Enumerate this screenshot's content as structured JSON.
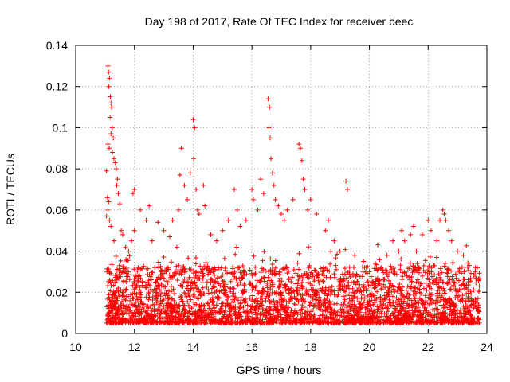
{
  "chart_data": {
    "type": "scatter",
    "title": "Day 198 of 2017, Rate Of TEC Index for receiver beec",
    "xlabel": "GPS time / hours",
    "ylabel": "ROTI / TECUs",
    "xlim": [
      10,
      24
    ],
    "ylim": [
      0,
      0.14
    ],
    "x_ticks": [
      10,
      12,
      14,
      16,
      18,
      20,
      22,
      24
    ],
    "x_tick_labels": [
      "10",
      "12",
      "14",
      "16",
      "18",
      "20",
      "22",
      "24"
    ],
    "y_ticks": [
      0,
      0.02,
      0.04,
      0.06,
      0.08,
      0.1,
      0.12,
      0.14
    ],
    "y_tick_labels": [
      "0",
      "0.02",
      "0.04",
      "0.06",
      "0.08",
      "0.1",
      "0.12",
      "0.14"
    ],
    "grid": true,
    "marker": "plus",
    "color": "#ff0000",
    "series": [
      {
        "name": "ROTI",
        "points": [
          [
            11.1,
            0.13
          ],
          [
            11.12,
            0.127
          ],
          [
            11.15,
            0.124
          ],
          [
            11.13,
            0.12
          ],
          [
            11.18,
            0.115
          ],
          [
            11.2,
            0.112
          ],
          [
            11.22,
            0.11
          ],
          [
            11.17,
            0.105
          ],
          [
            11.24,
            0.1
          ],
          [
            11.2,
            0.097
          ],
          [
            11.28,
            0.095
          ],
          [
            11.1,
            0.092
          ],
          [
            11.14,
            0.09
          ],
          [
            11.25,
            0.088
          ],
          [
            11.3,
            0.085
          ],
          [
            11.35,
            0.083
          ],
          [
            11.38,
            0.08
          ],
          [
            11.05,
            0.079
          ],
          [
            11.42,
            0.075
          ],
          [
            11.4,
            0.072
          ],
          [
            11.45,
            0.068
          ],
          [
            11.08,
            0.066
          ],
          [
            11.12,
            0.064
          ],
          [
            11.5,
            0.063
          ],
          [
            11.1,
            0.06
          ],
          [
            11.05,
            0.057
          ],
          [
            11.15,
            0.055
          ],
          [
            11.2,
            0.052
          ],
          [
            11.55,
            0.05
          ],
          [
            11.6,
            0.048
          ],
          [
            11.3,
            0.045
          ],
          [
            11.7,
            0.042
          ],
          [
            11.8,
            0.04
          ],
          [
            11.9,
            0.045
          ],
          [
            12.0,
            0.05
          ],
          [
            11.95,
            0.068
          ],
          [
            12.0,
            0.07
          ],
          [
            12.2,
            0.06
          ],
          [
            12.4,
            0.055
          ],
          [
            12.5,
            0.062
          ],
          [
            12.6,
            0.045
          ],
          [
            12.8,
            0.054
          ],
          [
            13.0,
            0.05
          ],
          [
            13.2,
            0.047
          ],
          [
            13.3,
            0.055
          ],
          [
            13.5,
            0.06
          ],
          [
            13.55,
            0.077
          ],
          [
            13.6,
            0.09
          ],
          [
            13.7,
            0.072
          ],
          [
            13.8,
            0.065
          ],
          [
            13.9,
            0.078
          ],
          [
            14.0,
            0.104
          ],
          [
            14.05,
            0.1
          ],
          [
            14.02,
            0.085
          ],
          [
            14.1,
            0.07
          ],
          [
            14.15,
            0.06
          ],
          [
            14.2,
            0.058
          ],
          [
            14.35,
            0.072
          ],
          [
            14.4,
            0.062
          ],
          [
            14.6,
            0.048
          ],
          [
            14.8,
            0.045
          ],
          [
            15.0,
            0.05
          ],
          [
            15.2,
            0.055
          ],
          [
            15.4,
            0.07
          ],
          [
            15.5,
            0.06
          ],
          [
            15.6,
            0.052
          ],
          [
            15.8,
            0.055
          ],
          [
            16.0,
            0.07
          ],
          [
            16.05,
            0.065
          ],
          [
            16.2,
            0.06
          ],
          [
            16.3,
            0.075
          ],
          [
            16.4,
            0.068
          ],
          [
            16.55,
            0.114
          ],
          [
            16.6,
            0.11
          ],
          [
            16.58,
            0.1
          ],
          [
            16.62,
            0.095
          ],
          [
            16.65,
            0.085
          ],
          [
            16.7,
            0.078
          ],
          [
            16.75,
            0.072
          ],
          [
            16.8,
            0.065
          ],
          [
            16.9,
            0.062
          ],
          [
            17.0,
            0.058
          ],
          [
            17.1,
            0.055
          ],
          [
            17.2,
            0.06
          ],
          [
            17.4,
            0.065
          ],
          [
            17.6,
            0.092
          ],
          [
            17.65,
            0.09
          ],
          [
            17.7,
            0.084
          ],
          [
            17.75,
            0.075
          ],
          [
            17.8,
            0.07
          ],
          [
            17.9,
            0.06
          ],
          [
            18.0,
            0.065
          ],
          [
            18.2,
            0.058
          ],
          [
            18.5,
            0.05
          ],
          [
            18.6,
            0.055
          ],
          [
            18.8,
            0.045
          ],
          [
            19.0,
            0.04
          ],
          [
            19.2,
            0.074
          ],
          [
            19.25,
            0.07
          ],
          [
            19.5,
            0.038
          ],
          [
            19.8,
            0.035
          ],
          [
            20.0,
            0.03
          ],
          [
            20.2,
            0.034
          ],
          [
            20.4,
            0.032
          ],
          [
            20.6,
            0.038
          ],
          [
            20.8,
            0.045
          ],
          [
            21.0,
            0.04
          ],
          [
            21.1,
            0.05
          ],
          [
            21.2,
            0.045
          ],
          [
            21.4,
            0.048
          ],
          [
            21.5,
            0.052
          ],
          [
            21.6,
            0.04
          ],
          [
            21.8,
            0.048
          ],
          [
            22.0,
            0.055
          ],
          [
            22.1,
            0.05
          ],
          [
            22.3,
            0.045
          ],
          [
            22.4,
            0.055
          ],
          [
            22.5,
            0.06
          ],
          [
            22.55,
            0.058
          ],
          [
            22.6,
            0.055
          ],
          [
            22.7,
            0.05
          ],
          [
            22.8,
            0.045
          ],
          [
            23.0,
            0.04
          ],
          [
            23.2,
            0.038
          ],
          [
            23.4,
            0.033
          ],
          [
            23.6,
            0.03
          ]
        ]
      }
    ]
  }
}
